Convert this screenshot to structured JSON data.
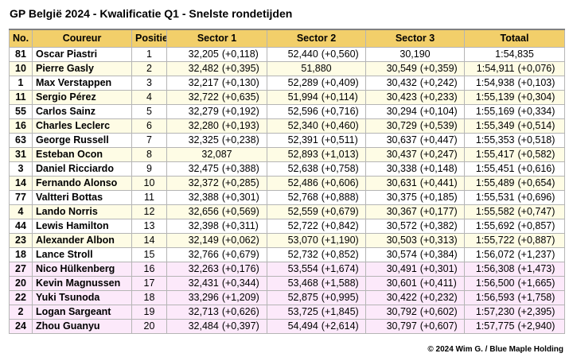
{
  "title": "GP België 2024 - Kwalificatie Q1 - Snelste rondetijden",
  "headers": [
    "No.",
    "Coureur",
    "Positie",
    "Sector 1",
    "Sector 2",
    "Sector 3",
    "Totaal"
  ],
  "rows": [
    {
      "no": "81",
      "name": "Oscar Piastri",
      "pos": "1",
      "s1": "32,205",
      "s1d": "(+0,118)",
      "s2": "52,440",
      "s2d": "(+0,560)",
      "s3": "30,190",
      "s3d": "",
      "tot": "1:54,835",
      "totd": ""
    },
    {
      "no": "10",
      "name": "Pierre Gasly",
      "pos": "2",
      "s1": "32,482",
      "s1d": "(+0,395)",
      "s2": "51,880",
      "s2d": "",
      "s3": "30,549",
      "s3d": "(+0,359)",
      "tot": "1:54,911",
      "totd": "(+0,076)"
    },
    {
      "no": "1",
      "name": "Max Verstappen",
      "pos": "3",
      "s1": "32,217",
      "s1d": "(+0,130)",
      "s2": "52,289",
      "s2d": "(+0,409)",
      "s3": "30,432",
      "s3d": "(+0,242)",
      "tot": "1:54,938",
      "totd": "(+0,103)"
    },
    {
      "no": "11",
      "name": "Sergio Pérez",
      "pos": "4",
      "s1": "32,722",
      "s1d": "(+0,635)",
      "s2": "51,994",
      "s2d": "(+0,114)",
      "s3": "30,423",
      "s3d": "(+0,233)",
      "tot": "1:55,139",
      "totd": "(+0,304)"
    },
    {
      "no": "55",
      "name": "Carlos Sainz",
      "pos": "5",
      "s1": "32,279",
      "s1d": "(+0,192)",
      "s2": "52,596",
      "s2d": "(+0,716)",
      "s3": "30,294",
      "s3d": "(+0,104)",
      "tot": "1:55,169",
      "totd": "(+0,334)"
    },
    {
      "no": "16",
      "name": "Charles Leclerc",
      "pos": "6",
      "s1": "32,280",
      "s1d": "(+0,193)",
      "s2": "52,340",
      "s2d": "(+0,460)",
      "s3": "30,729",
      "s3d": "(+0,539)",
      "tot": "1:55,349",
      "totd": "(+0,514)"
    },
    {
      "no": "63",
      "name": "George Russell",
      "pos": "7",
      "s1": "32,325",
      "s1d": "(+0,238)",
      "s2": "52,391",
      "s2d": "(+0,511)",
      "s3": "30,637",
      "s3d": "(+0,447)",
      "tot": "1:55,353",
      "totd": "(+0,518)"
    },
    {
      "no": "31",
      "name": "Esteban Ocon",
      "pos": "8",
      "s1": "32,087",
      "s1d": "",
      "s2": "52,893",
      "s2d": "(+1,013)",
      "s3": "30,437",
      "s3d": "(+0,247)",
      "tot": "1:55,417",
      "totd": "(+0,582)"
    },
    {
      "no": "3",
      "name": "Daniel Ricciardo",
      "pos": "9",
      "s1": "32,475",
      "s1d": "(+0,388)",
      "s2": "52,638",
      "s2d": "(+0,758)",
      "s3": "30,338",
      "s3d": "(+0,148)",
      "tot": "1:55,451",
      "totd": "(+0,616)"
    },
    {
      "no": "14",
      "name": "Fernando Alonso",
      "pos": "10",
      "s1": "32,372",
      "s1d": "(+0,285)",
      "s2": "52,486",
      "s2d": "(+0,606)",
      "s3": "30,631",
      "s3d": "(+0,441)",
      "tot": "1:55,489",
      "totd": "(+0,654)"
    },
    {
      "no": "77",
      "name": "Valtteri Bottas",
      "pos": "11",
      "s1": "32,388",
      "s1d": "(+0,301)",
      "s2": "52,768",
      "s2d": "(+0,888)",
      "s3": "30,375",
      "s3d": "(+0,185)",
      "tot": "1:55,531",
      "totd": "(+0,696)"
    },
    {
      "no": "4",
      "name": "Lando Norris",
      "pos": "12",
      "s1": "32,656",
      "s1d": "(+0,569)",
      "s2": "52,559",
      "s2d": "(+0,679)",
      "s3": "30,367",
      "s3d": "(+0,177)",
      "tot": "1:55,582",
      "totd": "(+0,747)"
    },
    {
      "no": "44",
      "name": "Lewis Hamilton",
      "pos": "13",
      "s1": "32,398",
      "s1d": "(+0,311)",
      "s2": "52,722",
      "s2d": "(+0,842)",
      "s3": "30,572",
      "s3d": "(+0,382)",
      "tot": "1:55,692",
      "totd": "(+0,857)"
    },
    {
      "no": "23",
      "name": "Alexander Albon",
      "pos": "14",
      "s1": "32,149",
      "s1d": "(+0,062)",
      "s2": "53,070",
      "s2d": "(+1,190)",
      "s3": "30,503",
      "s3d": "(+0,313)",
      "tot": "1:55,722",
      "totd": "(+0,887)"
    },
    {
      "no": "18",
      "name": "Lance Stroll",
      "pos": "15",
      "s1": "32,766",
      "s1d": "(+0,679)",
      "s2": "52,732",
      "s2d": "(+0,852)",
      "s3": "30,574",
      "s3d": "(+0,384)",
      "tot": "1:56,072",
      "totd": "(+1,237)"
    },
    {
      "no": "27",
      "name": "Nico Hülkenberg",
      "pos": "16",
      "s1": "32,263",
      "s1d": "(+0,176)",
      "s2": "53,554",
      "s2d": "(+1,674)",
      "s3": "30,491",
      "s3d": "(+0,301)",
      "tot": "1:56,308",
      "totd": "(+1,473)"
    },
    {
      "no": "20",
      "name": "Kevin Magnussen",
      "pos": "17",
      "s1": "32,431",
      "s1d": "(+0,344)",
      "s2": "53,468",
      "s2d": "(+1,588)",
      "s3": "30,601",
      "s3d": "(+0,411)",
      "tot": "1:56,500",
      "totd": "(+1,665)"
    },
    {
      "no": "22",
      "name": "Yuki Tsunoda",
      "pos": "18",
      "s1": "33,296",
      "s1d": "(+1,209)",
      "s2": "52,875",
      "s2d": "(+0,995)",
      "s3": "30,422",
      "s3d": "(+0,232)",
      "tot": "1:56,593",
      "totd": "(+1,758)"
    },
    {
      "no": "2",
      "name": "Logan Sargeant",
      "pos": "19",
      "s1": "32,713",
      "s1d": "(+0,626)",
      "s2": "53,725",
      "s2d": "(+1,845)",
      "s3": "30,792",
      "s3d": "(+0,602)",
      "tot": "1:57,230",
      "totd": "(+2,395)"
    },
    {
      "no": "24",
      "name": "Zhou Guanyu",
      "pos": "20",
      "s1": "32,484",
      "s1d": "(+0,397)",
      "s2": "54,494",
      "s2d": "(+2,614)",
      "s3": "30,797",
      "s3d": "(+0,607)",
      "tot": "1:57,775",
      "totd": "(+2,940)"
    }
  ],
  "credit": "© 2024 Wim G. / Blue Maple Holding",
  "colors": {
    "header": "#f2cf6a",
    "row_white": "#ffffff",
    "row_yellow": "#fefce5",
    "row_pink": "#fce9fa"
  }
}
